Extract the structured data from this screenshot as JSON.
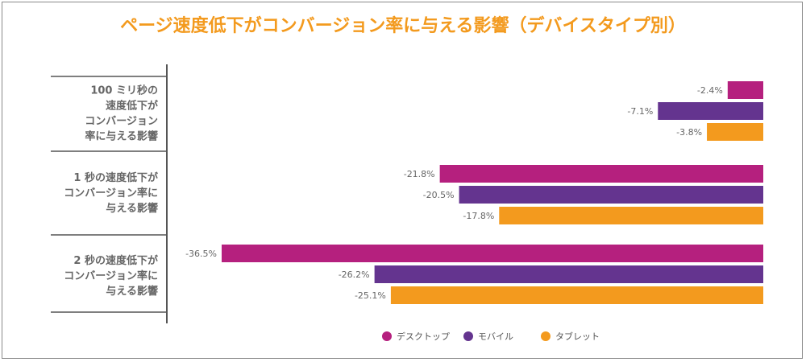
{
  "chart_data": {
    "type": "bar",
    "orientation": "horizontal",
    "title": "ページ速度低下がコンバージョン率に与える影響（デバイスタイプ別）",
    "categories": [
      [
        "100 ミリ秒の",
        "速度低下が",
        "コンバージョン",
        "率に与える影響"
      ],
      [
        "1 秒の速度低下が",
        "コンバージョン率に",
        "与える影響"
      ],
      [
        "2 秒の速度低下が",
        "コンバージョン率に",
        "与える影響"
      ]
    ],
    "series": [
      {
        "name": "デスクトップ",
        "color": "#b5207e",
        "values": [
          -2.4,
          -21.8,
          -36.5
        ],
        "labels": [
          "-2.4%",
          "-21.8%",
          "-36.5%"
        ]
      },
      {
        "name": "モバイル",
        "color": "#64348f",
        "values": [
          -7.1,
          -20.5,
          -26.2
        ],
        "labels": [
          "-7.1%",
          "-20.5%",
          "-26.2%"
        ]
      },
      {
        "name": "タブレット",
        "color": "#f39a1e",
        "values": [
          -3.8,
          -17.8,
          -25.1
        ],
        "labels": [
          "-3.8%",
          "-17.8%",
          "-25.1%"
        ]
      }
    ],
    "xlim": [
      -36.5,
      0
    ],
    "legend_position": "bottom",
    "grid": false
  }
}
